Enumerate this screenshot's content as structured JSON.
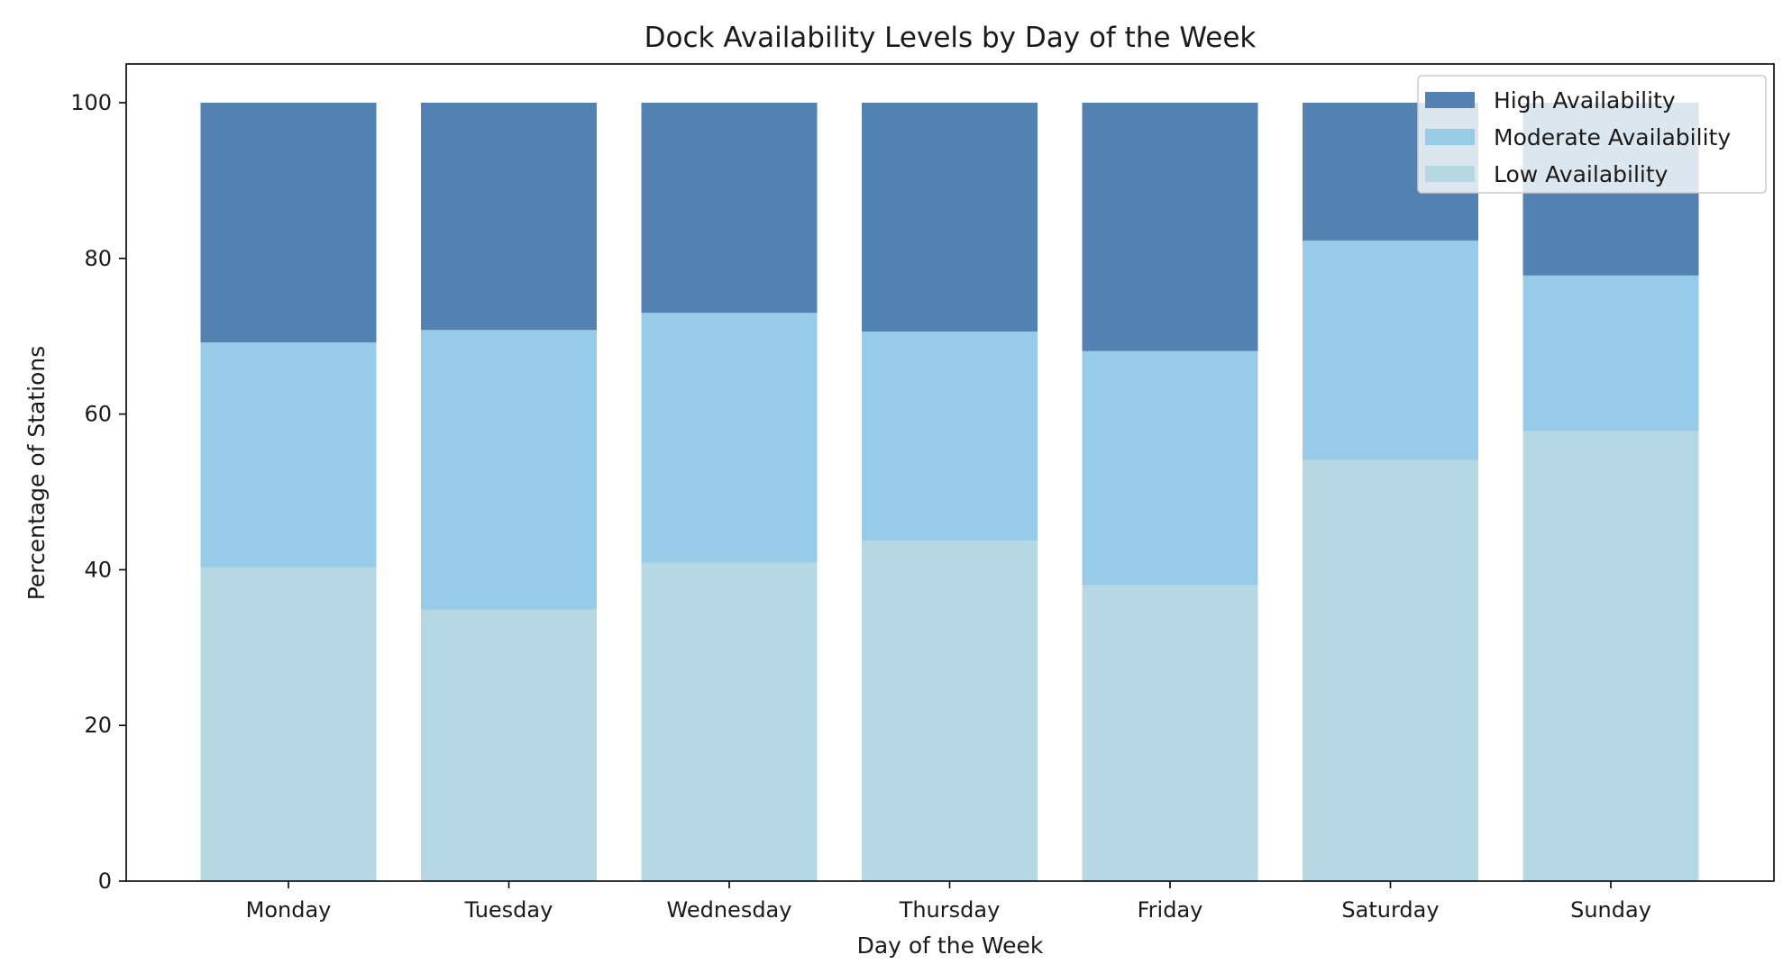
{
  "chart_data": {
    "type": "bar",
    "stacked": true,
    "title": "Dock Availability Levels by Day of the Week",
    "xlabel": "Day of the Week",
    "ylabel": "Percentage of Stations",
    "categories": [
      "Monday",
      "Tuesday",
      "Wednesday",
      "Thursday",
      "Friday",
      "Saturday",
      "Sunday"
    ],
    "ylim": [
      0,
      100
    ],
    "yticks": [
      0,
      20,
      40,
      60,
      80,
      100
    ],
    "legend_position": "top-right",
    "grid": false,
    "series": [
      {
        "name": "Low Availability",
        "color": "#b5d8e3",
        "values": [
          40.3,
          34.9,
          40.9,
          43.7,
          38.0,
          54.1,
          57.8
        ]
      },
      {
        "name": "Moderate Availability",
        "color": "#97cbe7",
        "values": [
          28.9,
          35.9,
          32.1,
          26.9,
          30.1,
          28.2,
          20.0
        ]
      },
      {
        "name": "High Availability",
        "color": "#5381b1",
        "values": [
          30.8,
          29.2,
          27.0,
          29.4,
          31.9,
          17.7,
          22.2
        ]
      }
    ],
    "legend_order": [
      "High Availability",
      "Moderate Availability",
      "Low Availability"
    ]
  }
}
